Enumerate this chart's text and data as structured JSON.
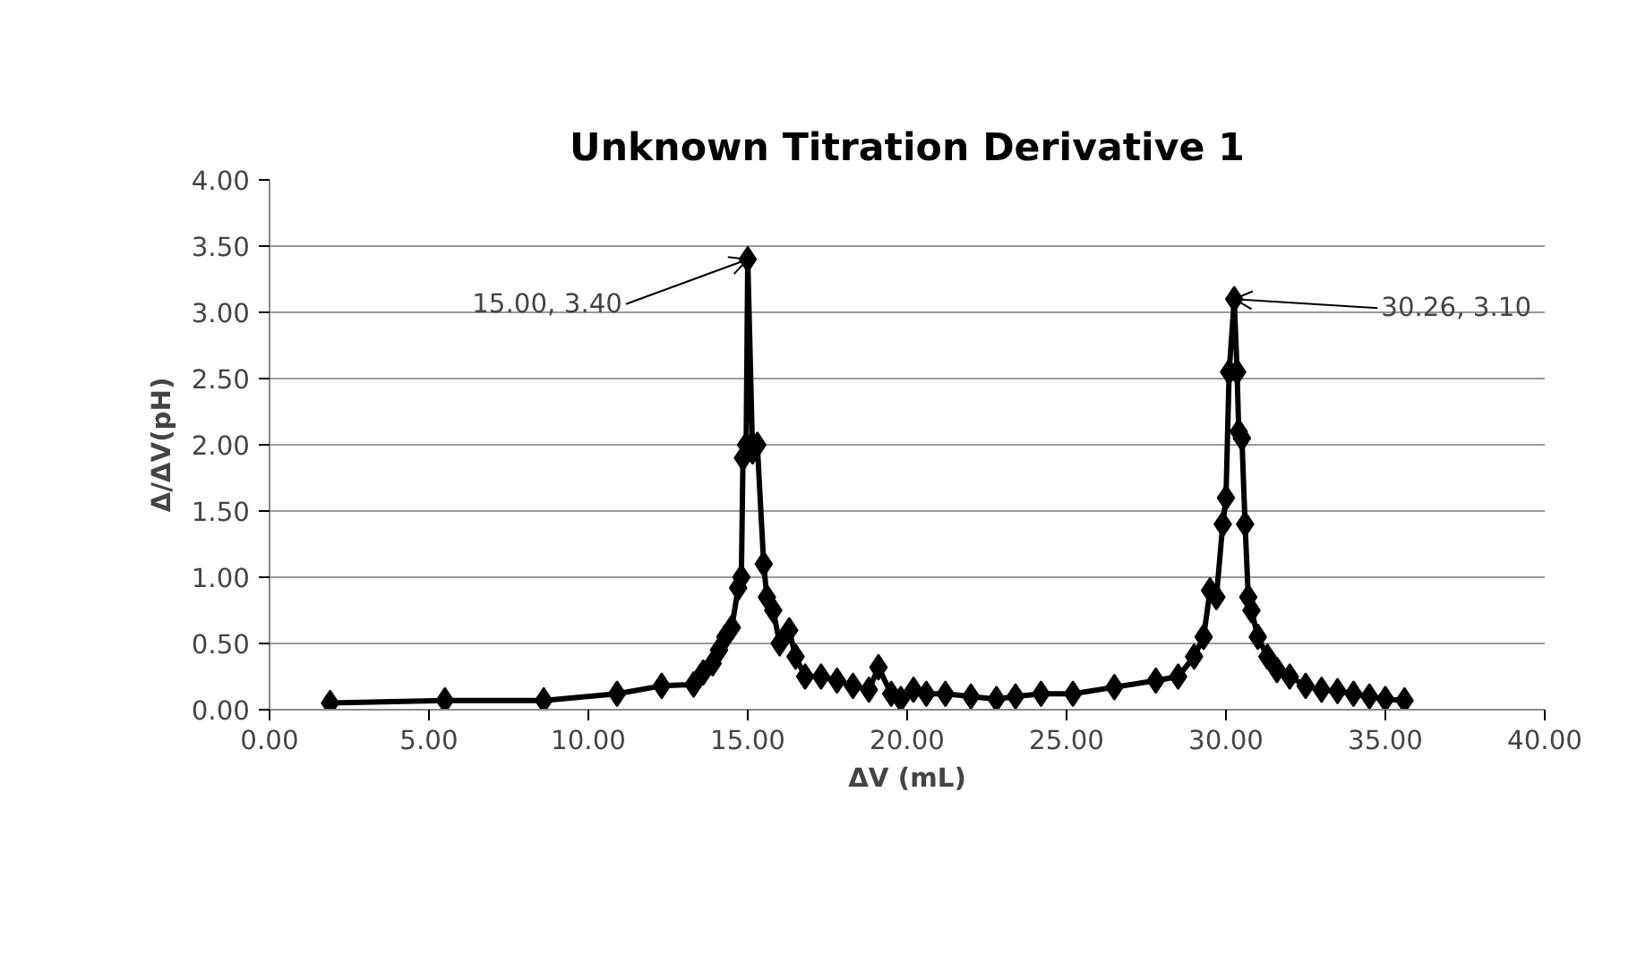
{
  "chart_data": {
    "type": "line",
    "title": "Unknown Titration Derivative 1",
    "xlabel": "ΔV (mL)",
    "ylabel": "Δ/ΔV(pH)",
    "x": [
      1.9,
      5.5,
      8.6,
      10.9,
      12.3,
      13.3,
      13.6,
      13.9,
      14.1,
      14.3,
      14.5,
      14.7,
      14.8,
      14.85,
      14.95,
      15.0,
      15.15,
      15.3,
      15.5,
      15.6,
      15.8,
      16.0,
      16.3,
      16.5,
      16.8,
      17.3,
      17.8,
      18.3,
      18.8,
      19.1,
      19.5,
      19.8,
      20.2,
      20.6,
      21.2,
      22.0,
      22.8,
      23.4,
      24.2,
      25.2,
      26.5,
      27.8,
      28.5,
      29.0,
      29.3,
      29.5,
      29.7,
      29.9,
      30.0,
      30.1,
      30.26,
      30.35,
      30.4,
      30.5,
      30.6,
      30.7,
      30.8,
      31.0,
      31.3,
      31.6,
      32.0,
      32.5,
      33.0,
      33.5,
      34.0,
      34.5,
      35.0,
      35.6
    ],
    "series": [
      {
        "color": "#000000",
        "values": [
          0.05,
          0.07,
          0.07,
          0.12,
          0.18,
          0.19,
          0.28,
          0.35,
          0.45,
          0.55,
          0.62,
          0.92,
          1.0,
          1.9,
          2.0,
          3.4,
          1.95,
          2.0,
          1.1,
          0.85,
          0.75,
          0.5,
          0.6,
          0.4,
          0.25,
          0.25,
          0.22,
          0.18,
          0.15,
          0.32,
          0.12,
          0.08,
          0.15,
          0.12,
          0.12,
          0.1,
          0.08,
          0.1,
          0.12,
          0.12,
          0.17,
          0.22,
          0.25,
          0.4,
          0.55,
          0.9,
          0.85,
          1.4,
          1.6,
          2.55,
          3.1,
          2.55,
          2.1,
          2.05,
          1.4,
          0.85,
          0.75,
          0.55,
          0.4,
          0.3,
          0.25,
          0.18,
          0.15,
          0.14,
          0.12,
          0.1,
          0.08,
          0.07
        ]
      }
    ],
    "annotations": [
      {
        "text": "15.00, 3.40",
        "x": 15.0,
        "y": 3.4
      },
      {
        "text": "30.26, 3.10",
        "x": 30.26,
        "y": 3.1
      }
    ],
    "xlim": [
      0,
      40
    ],
    "ylim": [
      0,
      4
    ],
    "xticks": [
      {
        "value": 0,
        "label": "0.00"
      },
      {
        "value": 5,
        "label": "5.00"
      },
      {
        "value": 10,
        "label": "10.00"
      },
      {
        "value": 15,
        "label": "15.00"
      },
      {
        "value": 20,
        "label": "20.00"
      },
      {
        "value": 25,
        "label": "25.00"
      },
      {
        "value": 30,
        "label": "30.00"
      },
      {
        "value": 35,
        "label": "35.00"
      },
      {
        "value": 40,
        "label": "40.00"
      }
    ],
    "yticks": [
      {
        "value": 0,
        "label": "0.00"
      },
      {
        "value": 0.5,
        "label": "0.50"
      },
      {
        "value": 1,
        "label": "1.00"
      },
      {
        "value": 1.5,
        "label": "1.50"
      },
      {
        "value": 2,
        "label": "2.00"
      },
      {
        "value": 2.5,
        "label": "2.50"
      },
      {
        "value": 3,
        "label": "3.00"
      },
      {
        "value": 3.5,
        "label": "3.50"
      },
      {
        "value": 4,
        "label": "4.00"
      }
    ],
    "grid": "y",
    "marker": "diamond",
    "line_style": "solid"
  }
}
